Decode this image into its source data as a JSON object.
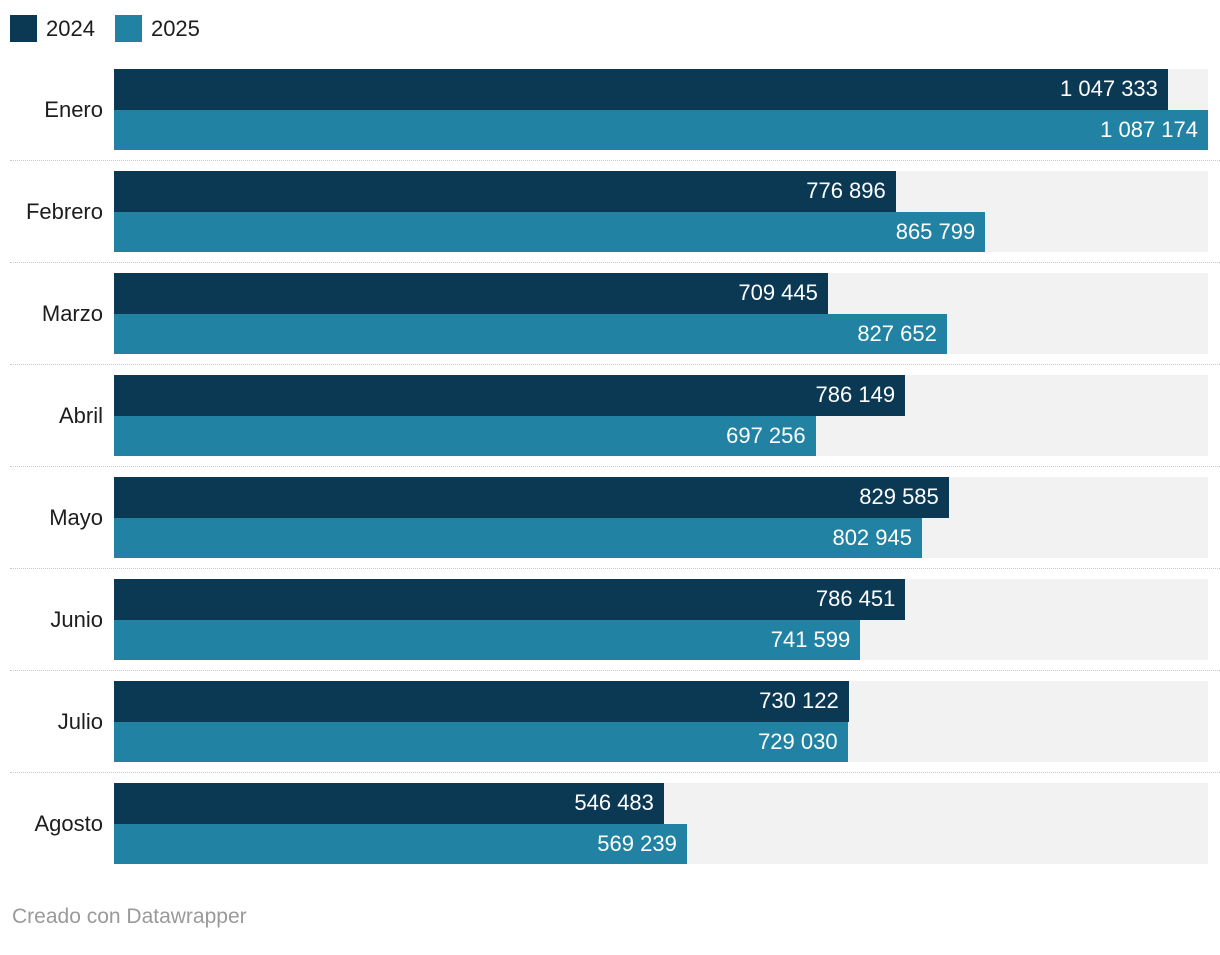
{
  "legend": {
    "items": [
      {
        "label": "2024",
        "color": "#0b3954",
        "swatch": "square-swatch"
      },
      {
        "label": "2025",
        "color": "#2182a3",
        "swatch": "square-swatch"
      }
    ]
  },
  "chart_data": {
    "type": "bar",
    "orientation": "horizontal",
    "grouped": true,
    "title": "",
    "xlabel": "",
    "ylabel": "",
    "categories": [
      "Enero",
      "Febrero",
      "Marzo",
      "Abril",
      "Mayo",
      "Junio",
      "Julio",
      "Agosto"
    ],
    "series": [
      {
        "name": "2024",
        "color": "#0b3954",
        "values": [
          1047333,
          776896,
          709445,
          786149,
          829585,
          786451,
          730122,
          546483
        ],
        "labels": [
          "1 047 333",
          "776 896",
          "709 445",
          "786 149",
          "829 585",
          "786 451",
          "730 122",
          "546 483"
        ]
      },
      {
        "name": "2025",
        "color": "#2182a3",
        "values": [
          1087174,
          865799,
          827652,
          697256,
          802945,
          741599,
          729030,
          569239
        ],
        "labels": [
          "1 087 174",
          "865 799",
          "827 652",
          "697 256",
          "802 945",
          "741 599",
          "729 030",
          "569 239"
        ]
      }
    ],
    "xlim": [
      0,
      1087174
    ],
    "value_label_position": "inside-end",
    "value_label_color": "#ffffff",
    "row_background": "#f2f2f2",
    "row_separator_style": "dotted",
    "legend_position": "top-left",
    "grid": "off"
  },
  "colors": {
    "background": "#ffffff",
    "row_track": "#f2f2f2",
    "separator": "#c8c8c8",
    "label_text": "#1d1d1d",
    "footer_text": "#9a9a9a"
  },
  "footer": {
    "attribution": "Creado con Datawrapper"
  }
}
